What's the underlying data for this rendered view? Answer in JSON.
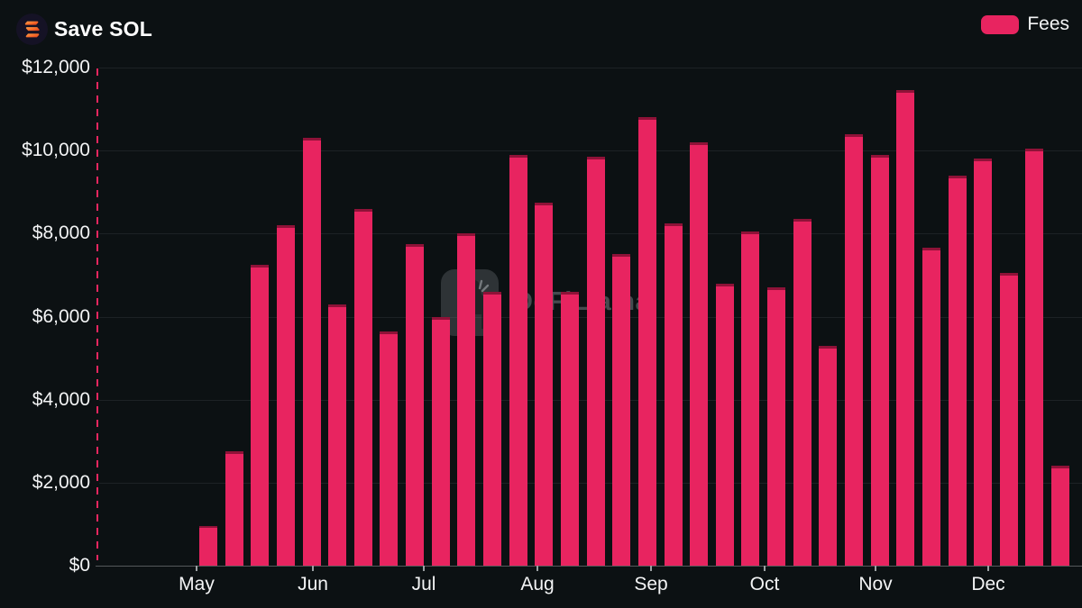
{
  "header": {
    "title": "Save SOL"
  },
  "legend": {
    "label": "Fees",
    "position": "top-right"
  },
  "watermark": {
    "text": "DeFiLlama"
  },
  "colors": {
    "background": "#0c1113",
    "bar": "#e82460",
    "bar_cap": "#8f1238",
    "axis_dash": "#e8265f",
    "grid": "#1d2225",
    "baseline": "#55585b",
    "tick": "#9ba0a3",
    "text": "#f3f4f5",
    "watermark_text": "#454b4f"
  },
  "chart_data": {
    "type": "bar",
    "title": "Save SOL",
    "legend_position": "top-right",
    "grid": "horizontal",
    "ylim": [
      0,
      12000
    ],
    "y_tick_labels_top_to_bottom": [
      "$12,000",
      "$10,000",
      "$8,000",
      "$6,000",
      "$4,000",
      "$2,000",
      "$0"
    ],
    "x_tick_labels": [
      "May",
      "Jun",
      "Jul",
      "Aug",
      "Sep",
      "Oct",
      "Nov",
      "Dec"
    ],
    "series": [
      {
        "name": "Fees",
        "unit": "USD",
        "values": [
          950,
          2750,
          7250,
          8200,
          10300,
          6300,
          8600,
          5650,
          7750,
          6000,
          8000,
          6600,
          9900,
          8750,
          6600,
          9850,
          7500,
          10800,
          8250,
          10200,
          6800,
          8050,
          6700,
          8350,
          5300,
          10400,
          9900,
          11450,
          7650,
          9400,
          9800,
          7050,
          10050,
          2400
        ]
      }
    ]
  }
}
